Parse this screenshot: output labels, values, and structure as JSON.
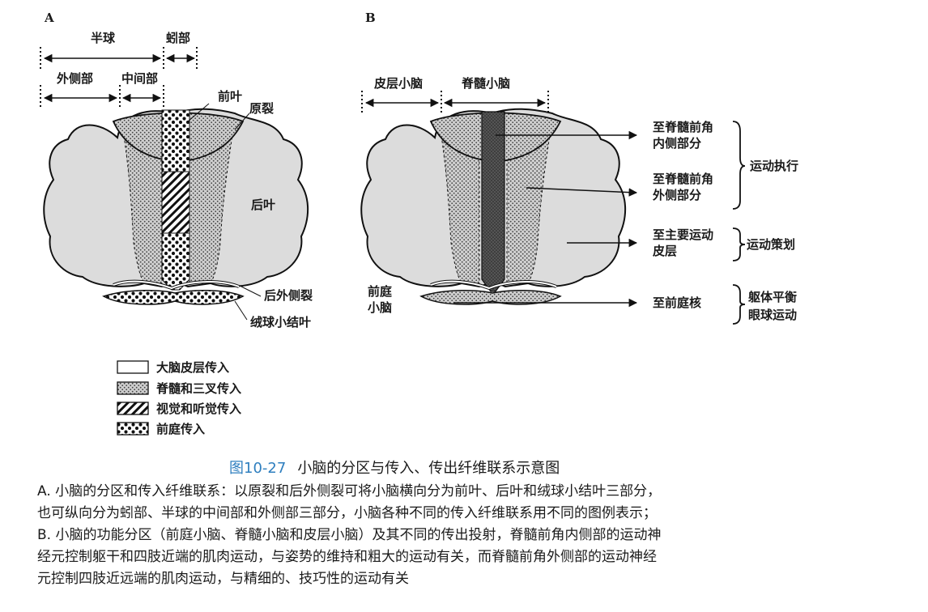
{
  "panels": {
    "a": "A",
    "b": "B"
  },
  "diagram_a": {
    "hemisphere": "半球",
    "vermis": "蚓部",
    "lateral_part": "外侧部",
    "intermediate_part": "中间部",
    "anterior_lobe": "前叶",
    "primary_fissure": "原裂",
    "posterior_lobe": "后叶",
    "posterolateral_fissure": "后外侧裂",
    "flocculonodular_lobe": "绒球小结叶"
  },
  "diagram_b": {
    "cerebrocerebellum": "皮层小脑",
    "spinocerebellum": "脊髓小脑",
    "to_medial_line1": "至脊髓前角",
    "to_medial_line2": "内侧部分",
    "to_lateral_line1": "至脊髓前角",
    "to_lateral_line2": "外侧部分",
    "to_motor_line1": "至主要运动",
    "to_motor_line2": "皮层",
    "vestibulo_line1": "前庭",
    "vestibulo_line2": "小脑",
    "to_vestibular": "至前庭核",
    "motor_execution": "运动执行",
    "motor_planning": "运动策划",
    "balance": "躯体平衡",
    "eye_movement": "眼球运动"
  },
  "legend": [
    {
      "label": "大脑皮层传入",
      "pattern": "white"
    },
    {
      "label": "脊髓和三叉传入",
      "pattern": "stipple"
    },
    {
      "label": "视觉和听觉传入",
      "pattern": "hatch"
    },
    {
      "label": "前庭传入",
      "pattern": "dots"
    }
  ],
  "caption": {
    "number": "图10-27",
    "title": "小脑的分区与传入、传出纤维联系示意图"
  },
  "notes": [
    "A. 小脑的分区和传入纤维联系：以原裂和后外侧裂可将小脑横向分为前叶、后叶和绒球小结叶三部分，",
    "也可纵向分为蚓部、半球的中间部和外侧部三部分，小脑各种不同的传入纤维联系用不同的图例表示；",
    "B. 小脑的功能分区（前庭小脑、脊髓小脑和皮层小脑）及其不同的传出投射，脊髓前角内侧部的运动神",
    "经元控制躯干和四肢近端的肌肉运动，与姿势的维持和粗大的运动有关，而脊髓前角外侧部的运动神经",
    "元控制四肢近远端的肌肉运动，与精细的、技巧性的运动有关"
  ],
  "colors": {
    "outline": "#1a1a1a",
    "fill_light": "#dcdcdc",
    "fill_dark": "#555555",
    "caption_accent": "#2f7fbf"
  }
}
